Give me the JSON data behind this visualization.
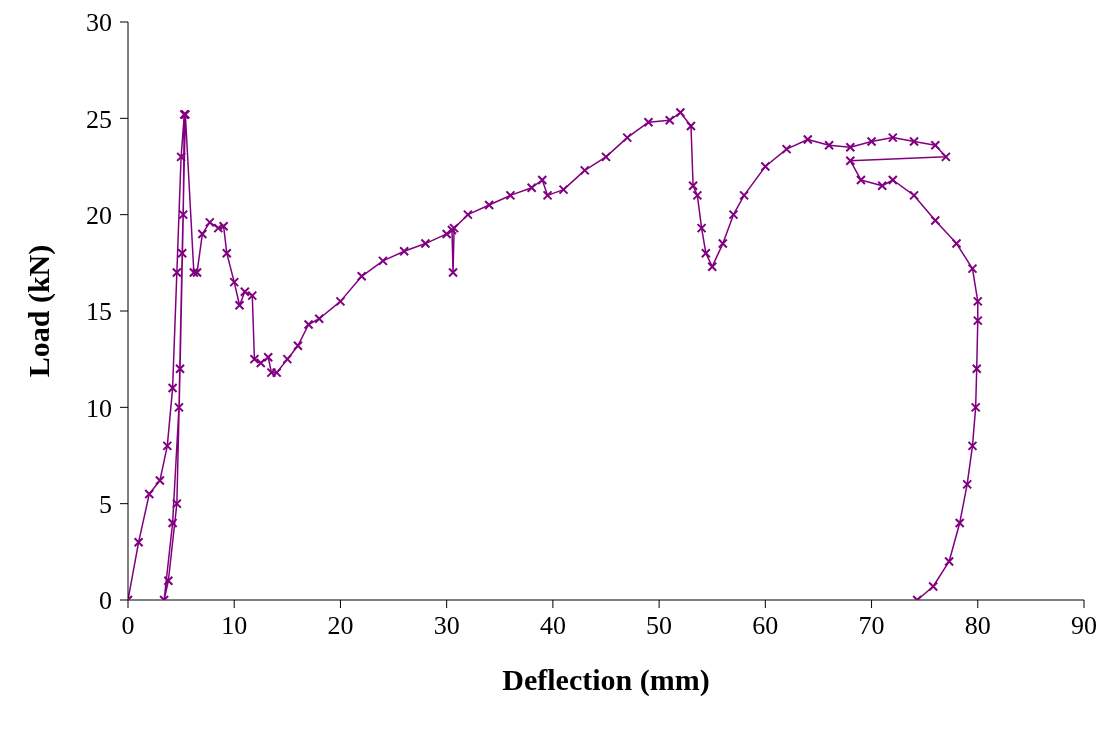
{
  "chart_data": {
    "type": "line",
    "xlabel": "Deflection (mm)",
    "ylabel": "Load (kN)",
    "xlim": [
      0,
      90
    ],
    "xticks": [
      0,
      10,
      20,
      30,
      40,
      50,
      60,
      70,
      80,
      90
    ],
    "ylim": [
      0,
      30
    ],
    "yticks": [
      0,
      5,
      10,
      15,
      20,
      25,
      30
    ],
    "grid": false,
    "marker": "cross",
    "line_style": "solid",
    "series": [
      {
        "color": "#800080",
        "x": [
          0,
          1,
          2,
          3,
          3.7,
          4.2,
          4.6,
          5,
          5.3,
          5.2,
          4.9,
          4.6,
          3.8,
          3.4,
          4.2,
          4.8,
          5.1,
          5.4,
          6.2,
          6.5,
          7,
          7.7,
          8.5,
          9,
          9.3,
          10,
          10.5,
          11,
          11.7,
          11.9,
          12.5,
          13.2,
          13.5,
          14,
          15,
          16,
          17,
          18,
          20,
          22,
          24,
          26,
          28,
          30,
          30.5,
          30.6,
          30.7,
          32,
          34,
          36,
          38,
          39,
          39.5,
          41,
          43,
          45,
          47,
          49,
          51,
          52,
          53,
          53.2,
          53.6,
          54,
          54.4,
          55,
          56,
          57,
          58,
          60,
          62,
          64,
          66,
          68,
          70,
          72,
          74,
          76,
          77,
          68,
          69,
          71,
          72,
          74,
          76,
          78,
          79.5,
          80,
          80,
          79.9,
          79.8,
          79.5,
          79,
          78.3,
          77.3,
          75.8,
          74.3
        ],
        "values": [
          0,
          3,
          5.5,
          6.2,
          8,
          11,
          17,
          23,
          25.2,
          20,
          12,
          5,
          1,
          0,
          4,
          10,
          18,
          25.2,
          17,
          17,
          19,
          19.6,
          19.3,
          19.4,
          18,
          16.5,
          15.3,
          16,
          15.8,
          12.5,
          12.3,
          12.6,
          11.8,
          11.8,
          12.5,
          13.2,
          14.3,
          14.6,
          15.5,
          16.8,
          17.6,
          18.1,
          18.5,
          19,
          19.2,
          17,
          19.3,
          20,
          20.5,
          21,
          21.4,
          21.8,
          21,
          21.3,
          22.3,
          23,
          24,
          24.8,
          24.9,
          25.3,
          24.6,
          21.5,
          21,
          19.3,
          18,
          17.3,
          18.5,
          20,
          21,
          22.5,
          23.4,
          23.9,
          23.6,
          23.5,
          23.8,
          24,
          23.8,
          23.6,
          23,
          22.8,
          21.8,
          21.5,
          21.8,
          21,
          19.7,
          18.5,
          17.2,
          15.5,
          14.5,
          12,
          10,
          8,
          6,
          4,
          2,
          0.7,
          0
        ]
      }
    ]
  }
}
